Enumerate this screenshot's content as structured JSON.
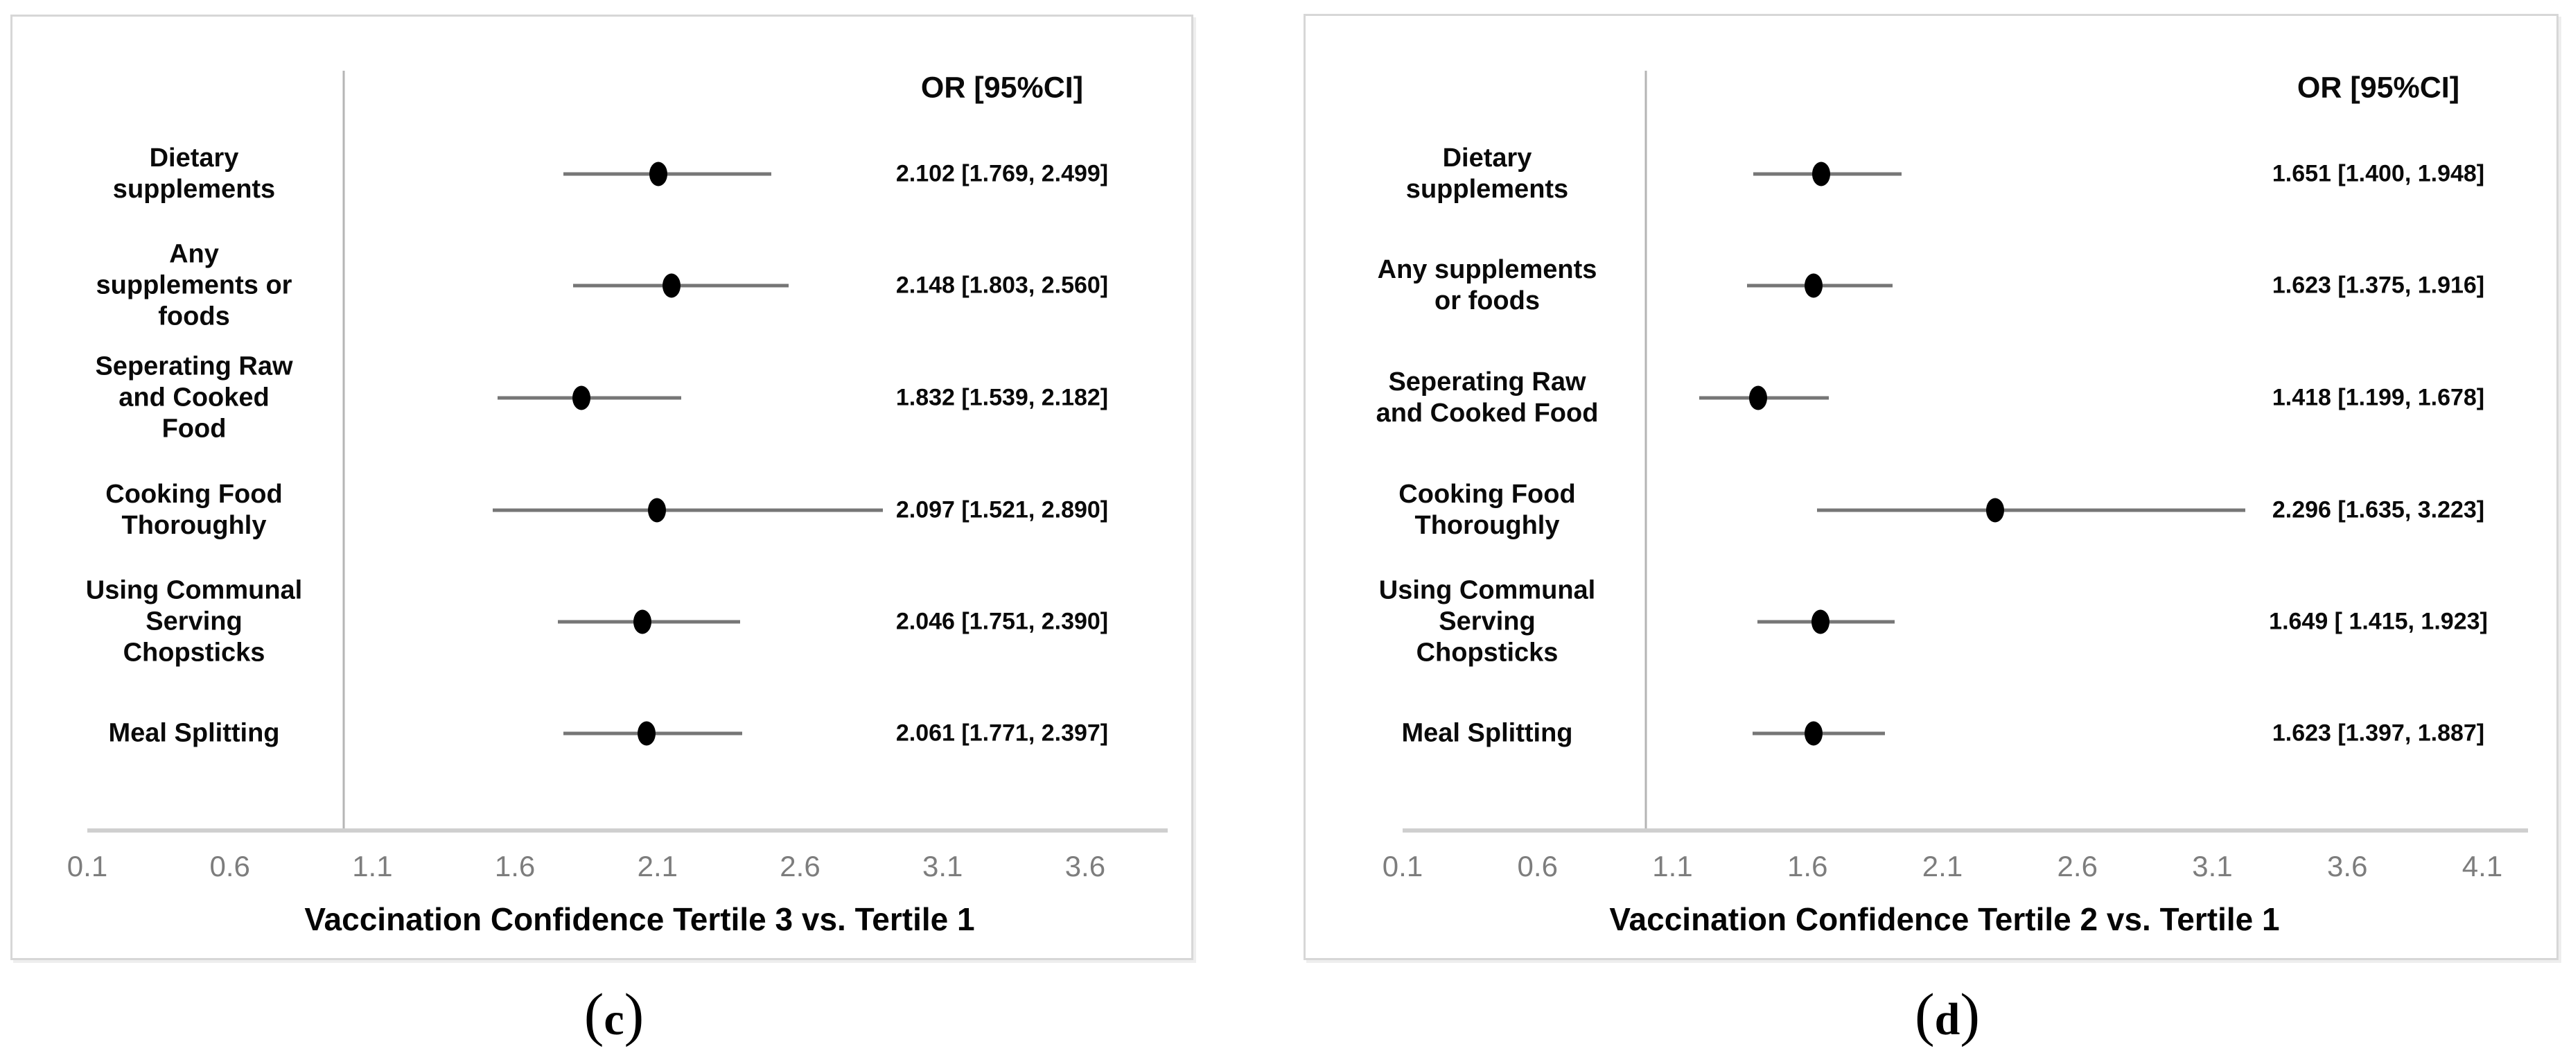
{
  "figure": {
    "background": "#ffffff",
    "description": "Two forest plots of odds ratios with 95% confidence intervals for COVID-19 protective behaviours by vaccination confidence tertile"
  },
  "colors": {
    "dot": "#000000",
    "ci_line": "#767676",
    "axis_line": "#cfcfcf",
    "reference_line": "#b5b5b5",
    "tick_text": "#7d7d7d",
    "label_text": "#0a0a0a",
    "panel_border": "#d7d7d7",
    "background": "#ffffff"
  },
  "captions": [
    {
      "open": "(",
      "letter": "c",
      "close": ")"
    },
    {
      "open": "(",
      "letter": "d",
      "close": ")"
    }
  ],
  "chart_data": [
    {
      "type": "scatter",
      "subtype": "forest-plot",
      "title": "Vaccination Confidence Tertile 3 vs. Tertile 1",
      "caption": "(c)",
      "or_header": "OR [95%CI]",
      "xticks": [
        "0.1",
        "0.6",
        "1.1",
        "1.6",
        "2.1",
        "2.6",
        "3.1",
        "3.6"
      ],
      "xtick_values": [
        0.1,
        0.6,
        1.1,
        1.6,
        2.1,
        2.6,
        3.1,
        3.6
      ],
      "xlim": [
        0.1,
        3.89
      ],
      "ref_line": 1.0,
      "grid": false,
      "legend": null,
      "rows": [
        {
          "label_lines": [
            "Dietary",
            "supplements"
          ],
          "or": 2.102,
          "ci_low": 1.769,
          "ci_high": 2.499,
          "or_text": "2.102 [1.769, 2.499]"
        },
        {
          "label_lines": [
            "Any",
            "supplements or",
            "foods"
          ],
          "or": 2.148,
          "ci_low": 1.803,
          "ci_high": 2.56,
          "or_text": "2.148 [1.803, 2.560]"
        },
        {
          "label_lines": [
            "Seperating Raw",
            "and Cooked",
            "Food"
          ],
          "or": 1.832,
          "ci_low": 1.539,
          "ci_high": 2.182,
          "or_text": "1.832 [1.539, 2.182]"
        },
        {
          "label_lines": [
            "Cooking Food",
            "Thoroughly"
          ],
          "or": 2.097,
          "ci_low": 1.521,
          "ci_high": 2.89,
          "or_text": "2.097 [1.521, 2.890]"
        },
        {
          "label_lines": [
            "Using Communal",
            "Serving",
            "Chopsticks"
          ],
          "or": 2.046,
          "ci_low": 1.751,
          "ci_high": 2.39,
          "or_text": "2.046 [1.751, 2.390]"
        },
        {
          "label_lines": [
            "Meal Splitting"
          ],
          "or": 2.061,
          "ci_low": 1.771,
          "ci_high": 2.397,
          "or_text": "2.061 [1.771, 2.397]"
        }
      ]
    },
    {
      "type": "scatter",
      "subtype": "forest-plot",
      "title": "Vaccination Confidence Tertile 2 vs. Tertile 1",
      "caption": "(d)",
      "or_header": "OR [95%CI]",
      "xticks": [
        "0.1",
        "0.6",
        "1.1",
        "1.6",
        "2.1",
        "2.6",
        "3.1",
        "3.6",
        "4.1"
      ],
      "xtick_values": [
        0.1,
        0.6,
        1.1,
        1.6,
        2.1,
        2.6,
        3.1,
        3.6,
        4.1
      ],
      "xlim": [
        0.1,
        4.27
      ],
      "ref_line": 1.0,
      "grid": false,
      "legend": null,
      "rows": [
        {
          "label_lines": [
            "Dietary",
            "supplements"
          ],
          "or": 1.651,
          "ci_low": 1.4,
          "ci_high": 1.948,
          "or_text": "1.651 [1.400, 1.948]"
        },
        {
          "label_lines": [
            "Any supplements",
            "or foods"
          ],
          "or": 1.623,
          "ci_low": 1.375,
          "ci_high": 1.916,
          "or_text": "1.623 [1.375, 1.916]"
        },
        {
          "label_lines": [
            "Seperating Raw",
            "and Cooked Food"
          ],
          "or": 1.418,
          "ci_low": 1.199,
          "ci_high": 1.678,
          "or_text": "1.418 [1.199, 1.678]"
        },
        {
          "label_lines": [
            "Cooking Food",
            "Thoroughly"
          ],
          "or": 2.296,
          "ci_low": 1.635,
          "ci_high": 3.223,
          "or_text": "2.296 [1.635, 3.223]"
        },
        {
          "label_lines": [
            "Using Communal",
            "Serving",
            "Chopsticks"
          ],
          "or": 1.649,
          "ci_low": 1.415,
          "ci_high": 1.923,
          "or_text": "1.649 [ 1.415, 1.923]"
        },
        {
          "label_lines": [
            "Meal Splitting"
          ],
          "or": 1.623,
          "ci_low": 1.397,
          "ci_high": 1.887,
          "or_text": "1.623 [1.397, 1.887]"
        }
      ]
    }
  ]
}
